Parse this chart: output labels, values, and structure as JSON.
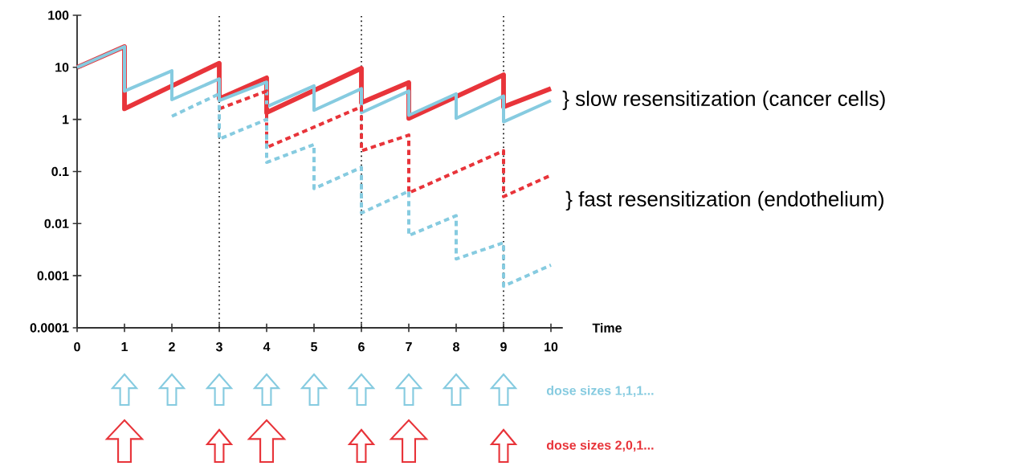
{
  "chart_data": {
    "type": "line",
    "log": "y",
    "xlabel": "Time",
    "xlim": [
      0,
      10.25
    ],
    "xticks": [
      0,
      1,
      2,
      3,
      4,
      5,
      6,
      7,
      8,
      9,
      10
    ],
    "ylim": [
      0.0001,
      100
    ],
    "yticks": [
      0.0001,
      0.001,
      0.01,
      0.1,
      1,
      10,
      100
    ],
    "series": [
      {
        "color": "#e8343a",
        "line_style": "solid",
        "x": [
          0,
          1,
          1,
          3,
          3,
          4,
          4,
          6,
          6,
          7,
          7,
          9,
          9,
          10
        ],
        "values": [
          10,
          25,
          1.6,
          12,
          2.5,
          6.3,
          1.35,
          9.6,
          2.1,
          5.1,
          1.05,
          7.2,
          1.75,
          3.9
        ]
      },
      {
        "color": "#86cbe0",
        "line_style": "solid",
        "x": [
          0,
          1,
          1,
          2,
          2,
          3,
          3,
          4,
          4,
          5,
          5,
          6,
          6,
          7,
          7,
          8,
          8,
          9,
          9,
          10
        ],
        "values": [
          10,
          25,
          3.5,
          8.6,
          2.4,
          6,
          2.3,
          5.2,
          1.75,
          4.4,
          1.5,
          3.9,
          1.35,
          3.5,
          1.2,
          3.1,
          1.05,
          2.8,
          0.9,
          2.3
        ]
      },
      {
        "color": "#e8343a",
        "line_style": "dashed",
        "x": [
          3,
          4,
          4,
          6,
          6,
          7,
          7,
          9,
          9,
          10
        ],
        "values": [
          1.6,
          3.5,
          0.29,
          1.75,
          0.25,
          0.5,
          0.039,
          0.25,
          0.033,
          0.085
        ]
      },
      {
        "color": "#86cbe0",
        "line_style": "dashed",
        "x": [
          2,
          3,
          3,
          4,
          4,
          5,
          5,
          6,
          6,
          7,
          7,
          8,
          8,
          9,
          9,
          10
        ],
        "values": [
          1.15,
          3.1,
          0.42,
          1.0,
          0.15,
          0.33,
          0.047,
          0.12,
          0.016,
          0.042,
          0.0059,
          0.0142,
          0.0021,
          0.0043,
          0.00063,
          0.0016
        ]
      }
    ],
    "ref_lines": [
      {
        "axis": "x",
        "value": 3,
        "color": "#000000",
        "line_style": "dotted"
      },
      {
        "axis": "x",
        "value": 6,
        "color": "#000000",
        "line_style": "dotted"
      },
      {
        "axis": "x",
        "value": 9,
        "color": "#000000",
        "line_style": "dotted"
      }
    ],
    "annotations": [
      "} slow resensitization (cancer cells)",
      "} fast resensitization (endothelium)",
      "dose sizes 1,1,1...",
      "dose sizes 2,0,1..."
    ]
  }
}
